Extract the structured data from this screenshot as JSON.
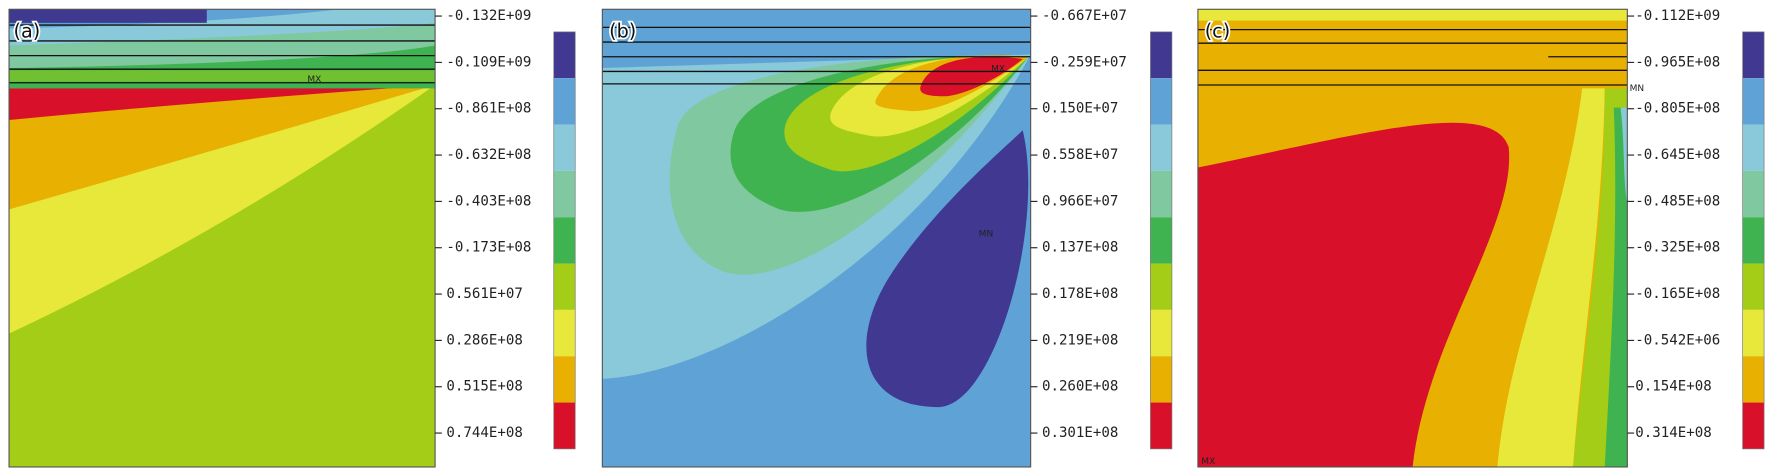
{
  "panels": [
    {
      "label": "(a)",
      "legend": [
        "-0.132E+09",
        "-0.109E+09",
        "-0.861E+08",
        "-0.632E+08",
        "-0.403E+08",
        "-0.173E+08",
        "0.561E+07",
        "0.286E+08",
        "0.515E+08",
        "0.744E+08"
      ],
      "annotations": [
        "MX"
      ]
    },
    {
      "label": "(b)",
      "legend": [
        "-0.667E+07",
        "-0.259E+07",
        "0.150E+07",
        "0.558E+07",
        "0.966E+07",
        "0.137E+08",
        "0.178E+08",
        "0.219E+08",
        "0.260E+08",
        "0.301E+08"
      ],
      "annotations": [
        "MX",
        "MN"
      ]
    },
    {
      "label": "(c)",
      "legend": [
        "-0.112E+09",
        "-0.965E+08",
        "-0.805E+08",
        "-0.645E+08",
        "-0.485E+08",
        "-0.325E+08",
        "-0.165E+08",
        "-0.542E+06",
        "0.154E+08",
        "0.314E+08"
      ],
      "annotations": [
        "MN",
        "MX"
      ]
    }
  ]
}
